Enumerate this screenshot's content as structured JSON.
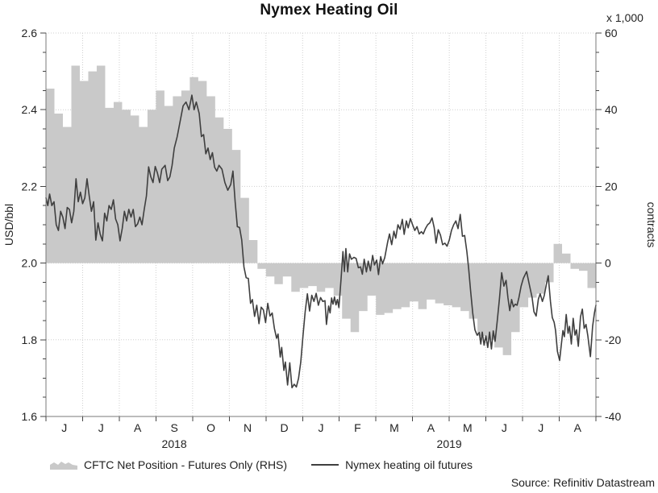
{
  "title": "Nymex Heating Oil",
  "source": "Source: Refinitiv Datastream",
  "left_axis": {
    "label": "USD/bbl",
    "min": 1.6,
    "max": 2.6,
    "ticks": [
      "2.6",
      "2.4",
      "2.2",
      "2.0",
      "1.8",
      "1.6"
    ],
    "tick_values": [
      2.6,
      2.4,
      2.2,
      2.0,
      1.8,
      1.6
    ],
    "minor_step": 0.05
  },
  "right_axis": {
    "label": "contracts",
    "unit_note": "x 1,000",
    "min": -40,
    "max": 60,
    "ticks": [
      "60",
      "40",
      "20",
      "0",
      "-20",
      "-40"
    ],
    "tick_values": [
      60,
      40,
      20,
      0,
      -20,
      -40
    ],
    "minor_step": 5
  },
  "x_axis": {
    "months": [
      "J",
      "J",
      "A",
      "S",
      "O",
      "N",
      "D",
      "J",
      "F",
      "M",
      "A",
      "M",
      "J",
      "J",
      "A"
    ],
    "years": [
      {
        "label": "2018",
        "center_month": 3.5
      },
      {
        "label": "2019",
        "center_month": 11
      }
    ]
  },
  "legend": [
    {
      "type": "area",
      "label": "CFTC Net Position - Futures Only (RHS)",
      "color": "#c9c9c9"
    },
    {
      "type": "line",
      "label": "Nymex heating oil futures",
      "color": "#3f3f3f"
    }
  ],
  "colors": {
    "grid": "#cfcfcf",
    "axis": "#7a7a7a",
    "tick": "#444444",
    "text": "#222222"
  },
  "chart_data": {
    "type": "line",
    "title": "Nymex Heating Oil",
    "x_unit": "months from June 2018 (0 = Jun 2018, 15 = end Aug 2019)",
    "grid": true,
    "legend_position": "bottom",
    "series": [
      {
        "name": "CFTC Net Position - Futures Only (RHS)",
        "type": "step-area",
        "axis": "right",
        "unit": "thousand contracts",
        "cadence": "weekly",
        "baseline": 0,
        "values": [
          45.5,
          39,
          35.5,
          51.5,
          47.5,
          50,
          51.5,
          40.5,
          42,
          40,
          38.5,
          35.5,
          40,
          45,
          41,
          43.5,
          45,
          48.5,
          47.5,
          43.5,
          38,
          35,
          29.5,
          17,
          6,
          -1.5,
          -3.5,
          -5.5,
          -3.5,
          -7.5,
          -6.5,
          -6,
          -7.5,
          -6.5,
          -8.5,
          -14.5,
          -18,
          -12.5,
          -8.5,
          -13.5,
          -13,
          -12,
          -11.5,
          -10,
          -12,
          -9.5,
          -10.5,
          -11,
          -11.5,
          -12.5,
          -14.5,
          -19,
          -20,
          -22,
          -24,
          -18,
          -11.5,
          -9,
          -8,
          -5,
          5,
          2.5,
          -1.5,
          -2,
          -6.5
        ]
      },
      {
        "name": "Nymex heating oil futures",
        "type": "line",
        "axis": "left",
        "unit": "USD/bbl",
        "points": [
          [
            0.0,
            2.17
          ],
          [
            0.05,
            2.15
          ],
          [
            0.1,
            2.18
          ],
          [
            0.16,
            2.15
          ],
          [
            0.22,
            2.16
          ],
          [
            0.28,
            2.1
          ],
          [
            0.34,
            2.085
          ],
          [
            0.4,
            2.135
          ],
          [
            0.46,
            2.12
          ],
          [
            0.52,
            2.09
          ],
          [
            0.58,
            2.145
          ],
          [
            0.64,
            2.14
          ],
          [
            0.7,
            2.105
          ],
          [
            0.76,
            2.135
          ],
          [
            0.82,
            2.22
          ],
          [
            0.88,
            2.16
          ],
          [
            0.94,
            2.185
          ],
          [
            1.0,
            2.155
          ],
          [
            1.06,
            2.17
          ],
          [
            1.12,
            2.22
          ],
          [
            1.18,
            2.175
          ],
          [
            1.24,
            2.135
          ],
          [
            1.3,
            2.16
          ],
          [
            1.36,
            2.06
          ],
          [
            1.42,
            2.105
          ],
          [
            1.48,
            2.075
          ],
          [
            1.54,
            2.058
          ],
          [
            1.6,
            2.13
          ],
          [
            1.66,
            2.11
          ],
          [
            1.72,
            2.15
          ],
          [
            1.78,
            2.14
          ],
          [
            1.84,
            2.165
          ],
          [
            1.9,
            2.115
          ],
          [
            1.96,
            2.1
          ],
          [
            2.02,
            2.058
          ],
          [
            2.08,
            2.09
          ],
          [
            2.14,
            2.135
          ],
          [
            2.2,
            2.11
          ],
          [
            2.26,
            2.14
          ],
          [
            2.32,
            2.12
          ],
          [
            2.38,
            2.14
          ],
          [
            2.44,
            2.095
          ],
          [
            2.5,
            2.102
          ],
          [
            2.56,
            2.12
          ],
          [
            2.62,
            2.1
          ],
          [
            2.68,
            2.14
          ],
          [
            2.74,
            2.175
          ],
          [
            2.8,
            2.251
          ],
          [
            2.86,
            2.225
          ],
          [
            2.92,
            2.21
          ],
          [
            2.98,
            2.252
          ],
          [
            3.04,
            2.235
          ],
          [
            3.1,
            2.21
          ],
          [
            3.16,
            2.245
          ],
          [
            3.25,
            2.255
          ],
          [
            3.32,
            2.215
          ],
          [
            3.38,
            2.225
          ],
          [
            3.44,
            2.255
          ],
          [
            3.5,
            2.3
          ],
          [
            3.58,
            2.33
          ],
          [
            3.66,
            2.37
          ],
          [
            3.74,
            2.41
          ],
          [
            3.82,
            2.42
          ],
          [
            3.9,
            2.4
          ],
          [
            3.98,
            2.438
          ],
          [
            4.04,
            2.4
          ],
          [
            4.1,
            2.42
          ],
          [
            4.18,
            2.39
          ],
          [
            4.24,
            2.33
          ],
          [
            4.3,
            2.335
          ],
          [
            4.36,
            2.285
          ],
          [
            4.42,
            2.3
          ],
          [
            4.48,
            2.27
          ],
          [
            4.54,
            2.288
          ],
          [
            4.6,
            2.25
          ],
          [
            4.66,
            2.24
          ],
          [
            4.72,
            2.255
          ],
          [
            4.8,
            2.245
          ],
          [
            4.88,
            2.21
          ],
          [
            4.96,
            2.19
          ],
          [
            5.04,
            2.205
          ],
          [
            5.1,
            2.24
          ],
          [
            5.16,
            2.16
          ],
          [
            5.22,
            2.095
          ],
          [
            5.28,
            2.093
          ],
          [
            5.34,
            2.06
          ],
          [
            5.4,
            1.99
          ],
          [
            5.46,
            1.962
          ],
          [
            5.52,
            1.96
          ],
          [
            5.58,
            1.895
          ],
          [
            5.63,
            1.905
          ],
          [
            5.69,
            1.861
          ],
          [
            5.75,
            1.89
          ],
          [
            5.81,
            1.842
          ],
          [
            5.87,
            1.885
          ],
          [
            5.93,
            1.878
          ],
          [
            5.99,
            1.845
          ],
          [
            6.05,
            1.895
          ],
          [
            6.11,
            1.862
          ],
          [
            6.17,
            1.87
          ],
          [
            6.23,
            1.83
          ],
          [
            6.29,
            1.804
          ],
          [
            6.33,
            1.815
          ],
          [
            6.39,
            1.755
          ],
          [
            6.43,
            1.78
          ],
          [
            6.49,
            1.72
          ],
          [
            6.53,
            1.742
          ],
          [
            6.59,
            1.682
          ],
          [
            6.65,
            1.74
          ],
          [
            6.71,
            1.675
          ],
          [
            6.77,
            1.684
          ],
          [
            6.83,
            1.677
          ],
          [
            6.89,
            1.7
          ],
          [
            6.95,
            1.742
          ],
          [
            7.01,
            1.81
          ],
          [
            7.07,
            1.873
          ],
          [
            7.13,
            1.92
          ],
          [
            7.19,
            1.875
          ],
          [
            7.25,
            1.916
          ],
          [
            7.31,
            1.9
          ],
          [
            7.37,
            1.921
          ],
          [
            7.43,
            1.89
          ],
          [
            7.49,
            1.91
          ],
          [
            7.55,
            1.9
          ],
          [
            7.61,
            1.902
          ],
          [
            7.65,
            1.84
          ],
          [
            7.71,
            1.888
          ],
          [
            7.75,
            1.87
          ],
          [
            7.79,
            1.909
          ],
          [
            7.83,
            1.893
          ],
          [
            7.87,
            1.912
          ],
          [
            7.91,
            1.891
          ],
          [
            7.95,
            1.905
          ],
          [
            7.99,
            1.884
          ],
          [
            8.05,
            1.96
          ],
          [
            8.1,
            2.03
          ],
          [
            8.14,
            1.978
          ],
          [
            8.18,
            2.038
          ],
          [
            8.23,
            1.977
          ],
          [
            8.28,
            2.024
          ],
          [
            8.33,
            2.01
          ],
          [
            8.4,
            2.015
          ],
          [
            8.46,
            2.012
          ],
          [
            8.52,
            1.988
          ],
          [
            8.58,
            1.99
          ],
          [
            8.63,
            1.971
          ],
          [
            8.68,
            2.01
          ],
          [
            8.74,
            1.977
          ],
          [
            8.79,
            2.005
          ],
          [
            8.85,
            1.98
          ],
          [
            8.91,
            2.02
          ],
          [
            8.96,
            1.995
          ],
          [
            9.02,
            2.008
          ],
          [
            9.07,
            1.97
          ],
          [
            9.13,
            2.017
          ],
          [
            9.18,
            1.998
          ],
          [
            9.24,
            2.014
          ],
          [
            9.32,
            2.055
          ],
          [
            9.37,
            2.076
          ],
          [
            9.43,
            2.048
          ],
          [
            9.49,
            2.083
          ],
          [
            9.54,
            2.065
          ],
          [
            9.6,
            2.1
          ],
          [
            9.66,
            2.088
          ],
          [
            9.72,
            2.114
          ],
          [
            9.77,
            2.075
          ],
          [
            9.83,
            2.11
          ],
          [
            9.88,
            2.092
          ],
          [
            9.94,
            2.116
          ],
          [
            10.0,
            2.1
          ],
          [
            10.06,
            2.085
          ],
          [
            10.12,
            2.095
          ],
          [
            10.18,
            2.076
          ],
          [
            10.24,
            2.082
          ],
          [
            10.29,
            2.076
          ],
          [
            10.35,
            2.09
          ],
          [
            10.41,
            2.1
          ],
          [
            10.47,
            2.105
          ],
          [
            10.53,
            2.118
          ],
          [
            10.59,
            2.092
          ],
          [
            10.64,
            2.052
          ],
          [
            10.7,
            2.087
          ],
          [
            10.76,
            2.073
          ],
          [
            10.82,
            2.048
          ],
          [
            10.88,
            2.052
          ],
          [
            10.94,
            2.044
          ],
          [
            11.0,
            2.06
          ],
          [
            11.06,
            2.085
          ],
          [
            11.12,
            2.1
          ],
          [
            11.18,
            2.11
          ],
          [
            11.24,
            2.09
          ],
          [
            11.3,
            2.127
          ],
          [
            11.36,
            2.07
          ],
          [
            11.42,
            2.072
          ],
          [
            11.48,
            2.03
          ],
          [
            11.53,
            1.985
          ],
          [
            11.58,
            1.93
          ],
          [
            11.64,
            1.87
          ],
          [
            11.7,
            1.826
          ],
          [
            11.76,
            1.812
          ],
          [
            11.82,
            1.819
          ],
          [
            11.86,
            1.789
          ],
          [
            11.9,
            1.82
          ],
          [
            11.95,
            1.786
          ],
          [
            12.0,
            1.81
          ],
          [
            12.05,
            1.78
          ],
          [
            12.1,
            1.82
          ],
          [
            12.15,
            1.776
          ],
          [
            12.2,
            1.823
          ],
          [
            12.25,
            1.796
          ],
          [
            12.31,
            1.85
          ],
          [
            12.37,
            1.908
          ],
          [
            12.43,
            1.975
          ],
          [
            12.49,
            1.94
          ],
          [
            12.55,
            1.955
          ],
          [
            12.6,
            1.91
          ],
          [
            12.65,
            1.876
          ],
          [
            12.7,
            1.905
          ],
          [
            12.75,
            1.886
          ],
          [
            12.8,
            1.893
          ],
          [
            12.85,
            1.89
          ],
          [
            12.9,
            1.91
          ],
          [
            12.96,
            1.94
          ],
          [
            13.02,
            1.96
          ],
          [
            13.11,
            1.978
          ],
          [
            13.17,
            1.95
          ],
          [
            13.26,
            1.91
          ],
          [
            13.31,
            1.873
          ],
          [
            13.37,
            1.862
          ],
          [
            13.43,
            1.906
          ],
          [
            13.48,
            1.92
          ],
          [
            13.54,
            1.9
          ],
          [
            13.59,
            1.915
          ],
          [
            13.65,
            1.945
          ],
          [
            13.7,
            1.967
          ],
          [
            13.76,
            1.9
          ],
          [
            13.81,
            1.858
          ],
          [
            13.86,
            1.846
          ],
          [
            13.9,
            1.824
          ],
          [
            13.95,
            1.77
          ],
          [
            14.01,
            1.746
          ],
          [
            14.06,
            1.79
          ],
          [
            14.1,
            1.824
          ],
          [
            14.14,
            1.808
          ],
          [
            14.19,
            1.866
          ],
          [
            14.24,
            1.817
          ],
          [
            14.28,
            1.835
          ],
          [
            14.33,
            1.789
          ],
          [
            14.38,
            1.856
          ],
          [
            14.43,
            1.812
          ],
          [
            14.47,
            1.826
          ],
          [
            14.52,
            1.783
          ],
          [
            14.58,
            1.86
          ],
          [
            14.63,
            1.88
          ],
          [
            14.68,
            1.83
          ],
          [
            14.73,
            1.84
          ],
          [
            14.78,
            1.81
          ],
          [
            14.85,
            1.756
          ],
          [
            14.91,
            1.835
          ],
          [
            14.96,
            1.87
          ],
          [
            15.0,
            1.89
          ]
        ]
      }
    ],
    "left_ylim": [
      1.6,
      2.6
    ],
    "right_ylim": [
      -40,
      60
    ]
  }
}
